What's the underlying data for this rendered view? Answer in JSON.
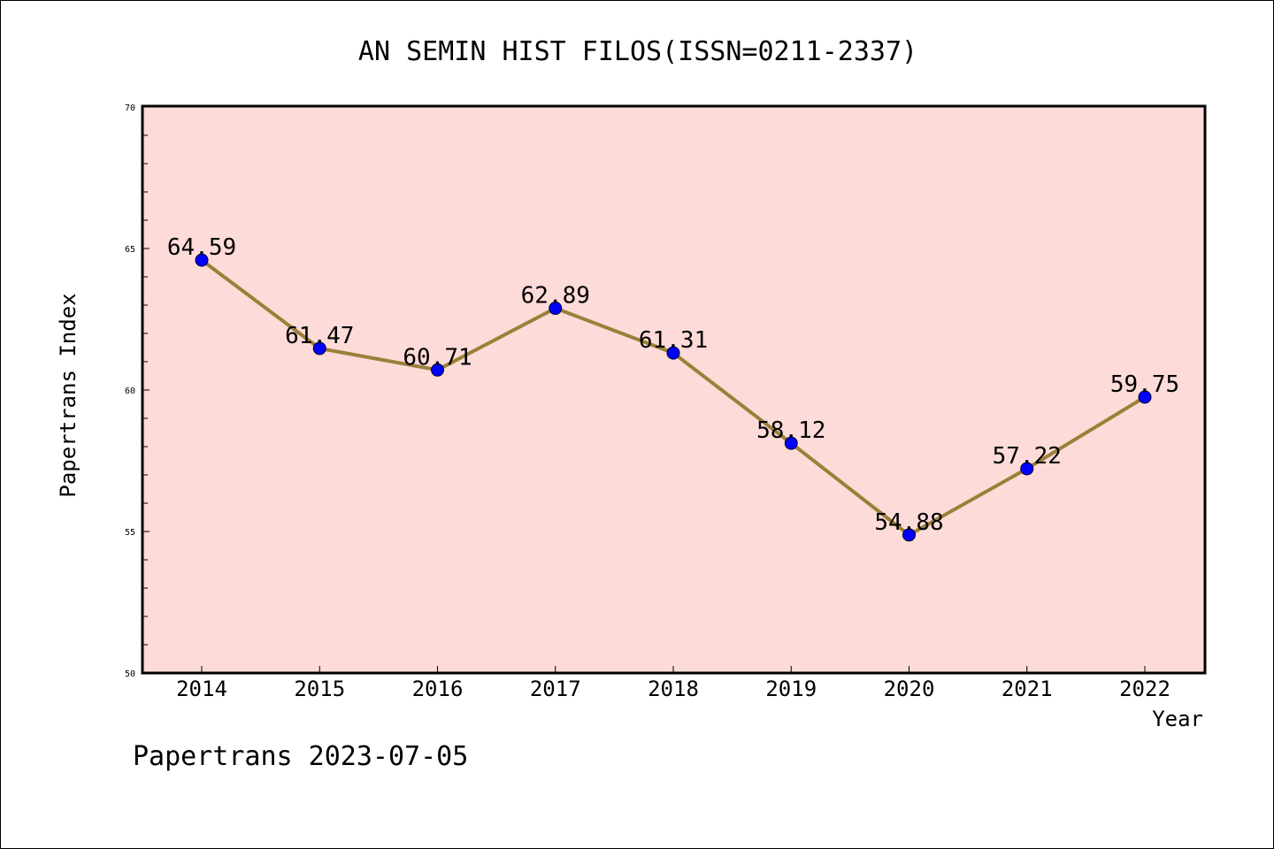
{
  "chart_data": {
    "type": "line",
    "title": "AN SEMIN HIST FILOS(ISSN=0211-2337)",
    "xlabel": "Year",
    "ylabel": "Papertrans Index",
    "categories": [
      "2014",
      "2015",
      "2016",
      "2017",
      "2018",
      "2019",
      "2020",
      "2021",
      "2022"
    ],
    "values": [
      64.59,
      61.47,
      60.71,
      62.89,
      61.31,
      58.12,
      54.88,
      57.22,
      59.75
    ],
    "value_labels": [
      "64.59",
      "61.47",
      "60.71",
      "62.89",
      "61.31",
      "58.12",
      "54.88",
      "57.22",
      "59.75"
    ],
    "ylim": [
      50,
      70
    ],
    "y_ticks": [
      50,
      55,
      60,
      65,
      70
    ],
    "y_minor_step": 1,
    "grid": false,
    "colors": {
      "plot_background": "#fddbd9",
      "line": "#9a8038",
      "marker": "#0000ff"
    }
  },
  "footer": "Papertrans 2023-07-05"
}
